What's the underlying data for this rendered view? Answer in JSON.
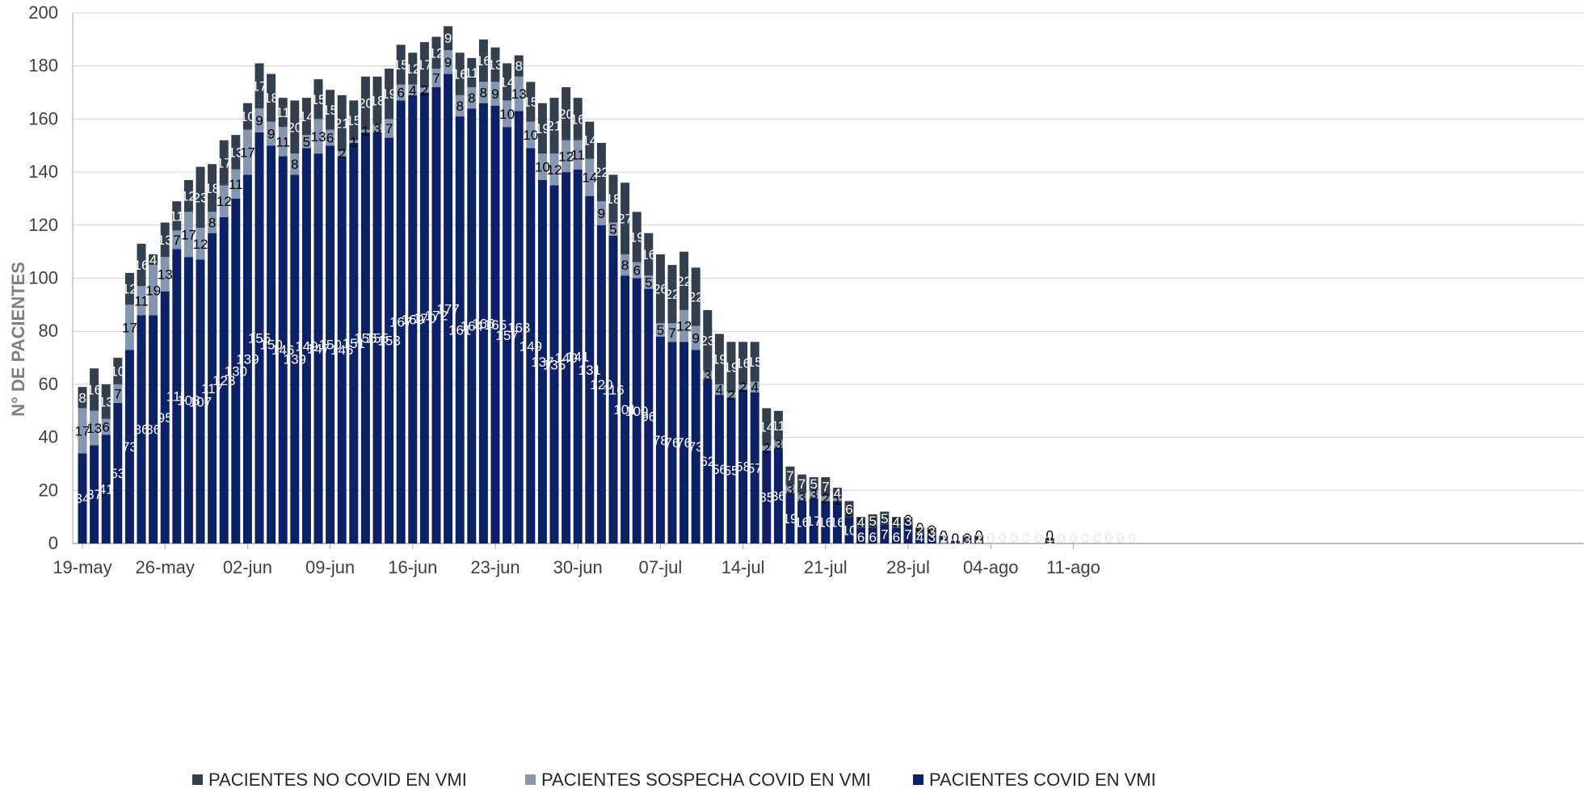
{
  "chart_data": {
    "type": "bar",
    "stacked": true,
    "title": "",
    "xlabel": "",
    "ylabel": "N° DE PACIENTES",
    "ylim": [
      0,
      200
    ],
    "yticks": [
      0,
      20,
      40,
      60,
      80,
      100,
      120,
      140,
      160,
      180,
      200
    ],
    "grid": true,
    "legend_position": "bottom",
    "start_date": "19-may",
    "xtick_labels": [
      "19-may",
      "26-may",
      "02-jun",
      "09-jun",
      "16-jun",
      "23-jun",
      "30-jun",
      "07-jul",
      "14-jul",
      "21-jul",
      "28-jul",
      "04-ago",
      "11-ago"
    ],
    "colors": {
      "covid": "#0d2266",
      "sospecha": "#8496b0",
      "no_covid": "#323f4f",
      "grid": "#d0d0d0",
      "axis": "#a6a6a6"
    },
    "series": [
      {
        "name": "PACIENTES COVID EN VMI",
        "key": "covid",
        "values": [
          34,
          37,
          41,
          53,
          73,
          86,
          86,
          95,
          111,
          108,
          107,
          117,
          123,
          130,
          139,
          155,
          150,
          146,
          139,
          149,
          147,
          150,
          146,
          151,
          155,
          155,
          153,
          167,
          169,
          170,
          172,
          177,
          161,
          164,
          166,
          165,
          157,
          163,
          149,
          137,
          135,
          140,
          141,
          131,
          120,
          116,
          101,
          100,
          96,
          78,
          76,
          76,
          73,
          62,
          56,
          55,
          58,
          57,
          35,
          36,
          19,
          16,
          17,
          16,
          16,
          10,
          6,
          6,
          7,
          6,
          7,
          4,
          3,
          1,
          0,
          0,
          1,
          0,
          0,
          0,
          0,
          0,
          1,
          0,
          0,
          0,
          0,
          0,
          0,
          0
        ]
      },
      {
        "name": "PACIENTES SOSPECHA COVID EN VMI",
        "key": "sospecha",
        "values": [
          17,
          13,
          6,
          7,
          17,
          11,
          19,
          13,
          7,
          17,
          12,
          8,
          12,
          11,
          17,
          9,
          9,
          11,
          8,
          5,
          13,
          6,
          2,
          1,
          1,
          3,
          7,
          6,
          4,
          2,
          7,
          9,
          8,
          8,
          8,
          9,
          10,
          13,
          10,
          10,
          12,
          12,
          11,
          14,
          9,
          5,
          8,
          6,
          5,
          5,
          7,
          12,
          9,
          3,
          4,
          2,
          2,
          4,
          2,
          3,
          3,
          3,
          3,
          2,
          1,
          0,
          0,
          0,
          0,
          0,
          0,
          0,
          0,
          0,
          0,
          0,
          0,
          0,
          0,
          0,
          0,
          0,
          0,
          0,
          0,
          0,
          0,
          0,
          0,
          0
        ]
      },
      {
        "name": "PACIENTES NO COVID EN VMI",
        "key": "no_covid",
        "values": [
          8,
          16,
          13,
          10,
          12,
          16,
          4,
          13,
          11,
          12,
          23,
          18,
          17,
          13,
          10,
          17,
          18,
          11,
          20,
          14,
          15,
          15,
          21,
          15,
          20,
          18,
          19,
          15,
          12,
          17,
          12,
          9,
          16,
          11,
          16,
          13,
          14,
          8,
          15,
          19,
          21,
          20,
          16,
          14,
          22,
          18,
          27,
          19,
          16,
          26,
          22,
          22,
          22,
          23,
          19,
          19,
          16,
          15,
          14,
          11,
          7,
          7,
          5,
          7,
          4,
          6,
          4,
          5,
          5,
          4,
          3,
          2,
          3,
          2,
          1,
          3,
          2,
          0,
          0,
          0,
          0,
          0,
          1,
          0,
          0,
          0,
          0,
          0,
          0,
          0
        ]
      }
    ],
    "legend": [
      {
        "label": "PACIENTES NO COVID EN VMI",
        "key": "no_covid"
      },
      {
        "label": "PACIENTES SOSPECHA COVID EN VMI",
        "key": "sospecha"
      },
      {
        "label": "PACIENTES COVID EN VMI",
        "key": "covid"
      }
    ]
  }
}
